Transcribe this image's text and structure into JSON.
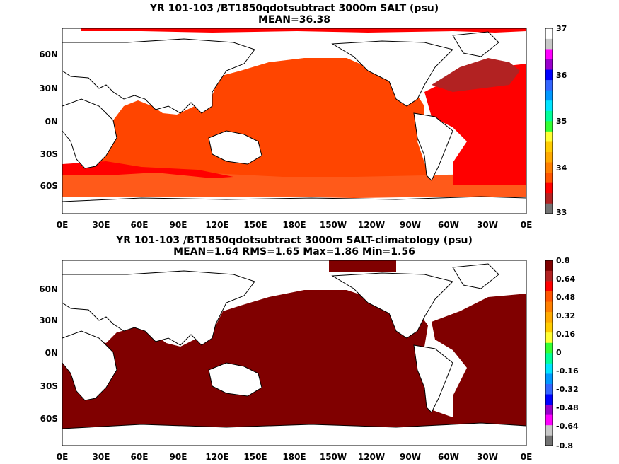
{
  "panels": [
    {
      "title": "YR 101-103 /BT1850qdotsubtract 3000m SALT (psu)",
      "subtitle": "MEAN=36.38",
      "colorbar_labels": [
        "37",
        "36",
        "35",
        "34",
        "33"
      ],
      "colorbar_colors": [
        "#ffffff",
        "#c8c8c8",
        "#ff00ff",
        "#9900cc",
        "#0000ff",
        "#3366ff",
        "#0099ff",
        "#00e5ff",
        "#00ff99",
        "#33ff33",
        "#ffff33",
        "#ffcc00",
        "#ffaa00",
        "#ff7f00",
        "#ff5500",
        "#ff0000",
        "#b22222",
        "#737373"
      ],
      "fill_colors": {
        "ocean_main": "#ff4500",
        "ocean_south": "#ff5a1a",
        "atlantic": "#ff0000",
        "north_atlantic": "#b22222",
        "arctic": "#ff0000"
      }
    },
    {
      "title": "YR 101-103 /BT1850qdotsubtract 3000m SALT-climatology (psu)",
      "subtitle": "MEAN=1.64   RMS=1.65   Max=1.86   Min=1.56",
      "colorbar_labels": [
        "0.8",
        "0.64",
        "0.48",
        "0.32",
        "0.16",
        "0",
        "-0.16",
        "-0.32",
        "-0.48",
        "-0.64",
        "-0.8"
      ],
      "colorbar_colors": [
        "#737373",
        "#c8c8c8",
        "#ff00ff",
        "#9900cc",
        "#0000ff",
        "#3366ff",
        "#0099ff",
        "#00e5ff",
        "#00ff99",
        "#33ff33",
        "#ffff33",
        "#ffcc00",
        "#ffaa00",
        "#ff7f00",
        "#ff5500",
        "#ff0000",
        "#b22222",
        "#7f0000"
      ],
      "fill_colors": {
        "ocean_main": "#800000"
      }
    }
  ],
  "lat_labels": [
    "60N",
    "30N",
    "0N",
    "30S",
    "60S"
  ],
  "lon_labels": [
    "0E",
    "30E",
    "60E",
    "90E",
    "120E",
    "150E",
    "180E",
    "150W",
    "120W",
    "90W",
    "60W",
    "30W",
    "0E"
  ]
}
